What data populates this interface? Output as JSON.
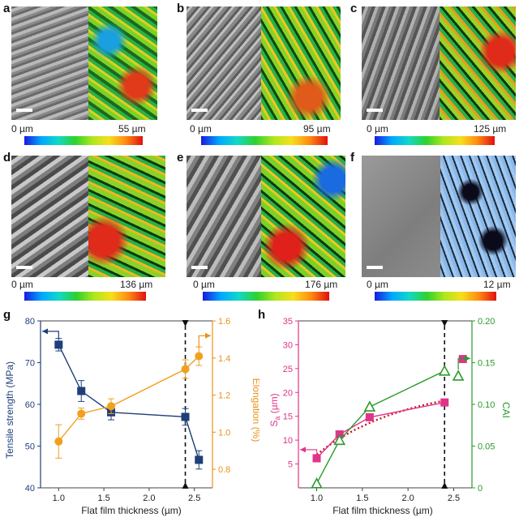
{
  "panels": [
    {
      "label": "a",
      "min": "0 µm",
      "max": "55 µm"
    },
    {
      "label": "b",
      "min": "0 µm",
      "max": "95 µm"
    },
    {
      "label": "c",
      "min": "0 µm",
      "max": "125 µm"
    },
    {
      "label": "d",
      "min": "0 µm",
      "max": "136 µm"
    },
    {
      "label": "e",
      "min": "0 µm",
      "max": "176 µm"
    },
    {
      "label": "f",
      "min": "0 µm",
      "max": "12 µm"
    }
  ],
  "colors": {
    "blue": "#1f3f7a",
    "orange": "#f0a020",
    "magenta": "#e0338a",
    "green": "#2a9a2a",
    "red_dots": "#cc1111"
  },
  "chart_data": [
    {
      "label": "g",
      "type": "line",
      "xlabel": "Flat film thickness (µm)",
      "ylabel_left": "Tensile strength (MPa)",
      "ylabel_right": "Elongation (%)",
      "xlim": [
        0.8,
        2.7
      ],
      "ylim_left": [
        40,
        80
      ],
      "ylim_right": [
        0.7,
        1.6
      ],
      "xticks": [
        "1.0",
        "1.5",
        "2.0",
        "2.5"
      ],
      "yticks_left": [
        "40",
        "50",
        "60",
        "70",
        "80"
      ],
      "yticks_right": [
        "0.8",
        "1.0",
        "1.2",
        "1.4",
        "1.6"
      ],
      "series": [
        {
          "axis": "left",
          "marker": "square",
          "color": "#1f3f7a",
          "x": [
            1.0,
            1.25,
            1.58,
            2.4,
            2.55
          ],
          "y": [
            74.3,
            63.2,
            58.1,
            57.0,
            46.7
          ],
          "err": [
            1.5,
            2.5,
            1.8,
            2.0,
            2.2
          ]
        },
        {
          "axis": "right",
          "marker": "circle",
          "color": "#f0a020",
          "x": [
            1.0,
            1.25,
            1.58,
            2.4,
            2.55
          ],
          "y": [
            0.95,
            1.1,
            1.14,
            1.34,
            1.41
          ],
          "err": [
            0.09,
            0.03,
            0.04,
            0.05,
            0.05
          ]
        }
      ],
      "dashed_x": 2.4
    },
    {
      "label": "h",
      "type": "line",
      "xlabel": "Flat film thickness (µm)",
      "ylabel_left_main": "S",
      "ylabel_left_sub": "a",
      "ylabel_left_unit": " (µm)",
      "ylabel_right": "CAI",
      "xlim": [
        0.8,
        2.7
      ],
      "ylim_left": [
        0,
        35
      ],
      "ylim_right": [
        0,
        0.2
      ],
      "xticks": [
        "1.0",
        "1.5",
        "2.0",
        "2.5"
      ],
      "yticks_left": [
        "5",
        "10",
        "15",
        "20",
        "25",
        "30",
        "35"
      ],
      "yticks_right": [
        "0",
        "0.05",
        "0.10",
        "0.15",
        "0.20"
      ],
      "series": [
        {
          "axis": "left",
          "marker": "square",
          "color": "#e0338a",
          "x": [
            1.0,
            1.25,
            1.58,
            2.4
          ],
          "y": [
            6.2,
            11.2,
            14.8,
            17.9
          ]
        },
        {
          "axis": "left",
          "marker": "square",
          "color": "#e0338a",
          "line": false,
          "x": [
            2.6
          ],
          "y": [
            27.0
          ]
        },
        {
          "axis": "right",
          "marker": "triangle",
          "color": "#2a9a2a",
          "x": [
            1.0,
            1.25,
            1.58,
            2.4
          ],
          "y": [
            0.005,
            0.057,
            0.097,
            0.14
          ]
        },
        {
          "axis": "right",
          "marker": "triangle",
          "color": "#2a9a2a",
          "line": false,
          "x": [
            2.55
          ],
          "y": [
            0.134
          ]
        }
      ],
      "fit": {
        "axis": "left",
        "color": "#cc1111",
        "x": [
          1.0,
          1.2,
          1.4,
          1.6,
          1.8,
          2.0,
          2.2,
          2.4
        ],
        "y": [
          7.0,
          9.8,
          12.0,
          13.8,
          15.3,
          16.5,
          17.5,
          18.3
        ]
      },
      "dashed_x": 2.4
    }
  ]
}
